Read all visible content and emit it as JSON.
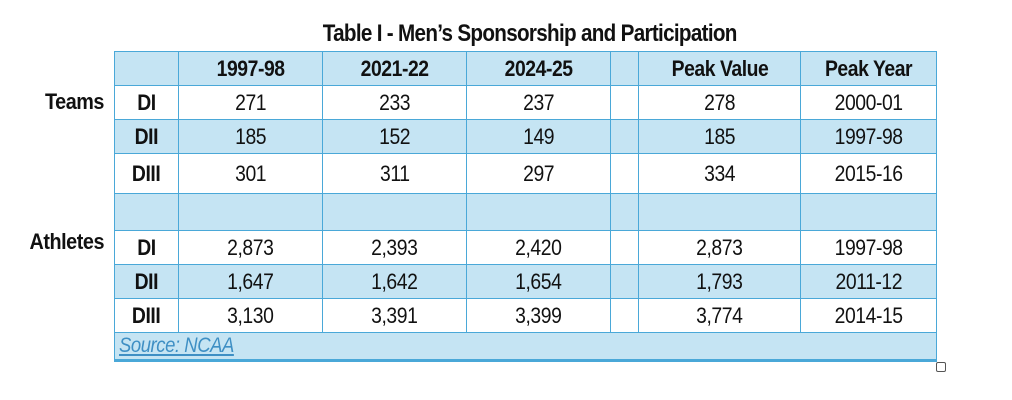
{
  "title": "Table I - Men’s Sponsorship and Participation",
  "row_groups": {
    "teams": "Teams",
    "athletes": "Athletes"
  },
  "columns": [
    "",
    "1997-98",
    "2021-22",
    "2024-25",
    "",
    "Peak Value",
    "Peak Year"
  ],
  "teams": [
    {
      "div": "DI",
      "v1": "271",
      "v2": "233",
      "v3": "237",
      "peak": "278",
      "year": "2000-01"
    },
    {
      "div": "DII",
      "v1": "185",
      "v2": "152",
      "v3": "149",
      "peak": "185",
      "year": "1997-98"
    },
    {
      "div": "DIII",
      "v1": "301",
      "v2": "311",
      "v3": "297",
      "peak": "334",
      "year": "2015-16"
    }
  ],
  "athletes": [
    {
      "div": "DI",
      "v1": "2,873",
      "v2": "2,393",
      "v3": "2,420",
      "peak": "2,873",
      "year": "1997-98"
    },
    {
      "div": "DII",
      "v1": "1,647",
      "v2": "1,642",
      "v3": "1,654",
      "peak": "1,793",
      "year": "2011-12"
    },
    {
      "div": "DIII",
      "v1": "3,130",
      "v2": "3,391",
      "v3": "3,399",
      "peak": "3,774",
      "year": "2014-15"
    }
  ],
  "source": "Source: NCAA",
  "colors": {
    "border": "#4aa8d8",
    "band": "#c5e4f3",
    "source_text": "#3e8fc4"
  }
}
